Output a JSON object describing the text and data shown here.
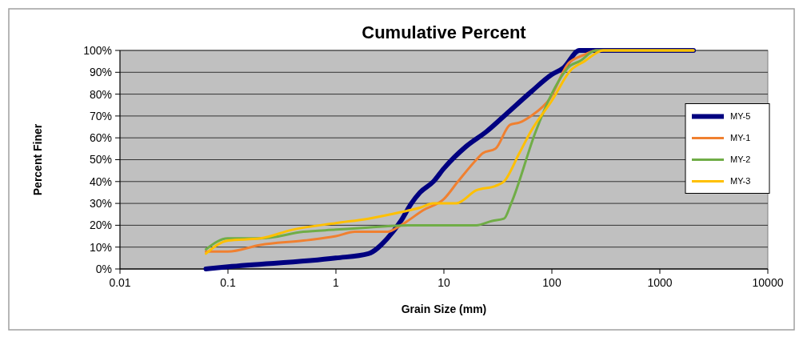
{
  "chart_data": {
    "type": "line",
    "title": "Cumulative Percent",
    "xlabel": "Grain Size (mm)",
    "ylabel": "Percent Finer",
    "log": "x",
    "grid": "y",
    "legend": "right",
    "marker": "none",
    "line_style": "solid",
    "xlim": [
      0.01,
      10000
    ],
    "xticks": [
      0.01,
      0.1,
      1,
      10,
      100,
      1000,
      10000
    ],
    "ylim": [
      0,
      100
    ],
    "yticks": [
      {
        "value": 0,
        "label": "0%"
      },
      {
        "value": 10,
        "label": "10%"
      },
      {
        "value": 20,
        "label": "20%"
      },
      {
        "value": 30,
        "label": "30%"
      },
      {
        "value": 40,
        "label": "40%"
      },
      {
        "value": 50,
        "label": "50%"
      },
      {
        "value": 60,
        "label": "60%"
      },
      {
        "value": 70,
        "label": "70%"
      },
      {
        "value": 80,
        "label": "80%"
      },
      {
        "value": 90,
        "label": "90%"
      },
      {
        "value": 100,
        "label": "100%"
      }
    ],
    "series": [
      {
        "name": "MY-5",
        "color": "#000080",
        "x": [
          0.0625,
          0.1,
          1,
          2,
          3,
          4,
          5,
          6,
          8,
          10,
          16,
          25,
          40,
          64,
          100,
          128,
          180,
          256,
          2048
        ],
        "values": [
          0,
          1,
          5,
          7,
          14,
          22,
          30,
          35,
          40,
          46,
          56,
          63,
          72,
          81,
          89,
          92,
          100,
          100,
          100
        ]
      },
      {
        "name": "MY-1",
        "color": "#f08030",
        "x": [
          0.0625,
          0.1,
          0.2,
          0.5,
          1,
          1.5,
          3,
          4,
          6.5,
          10,
          13.5,
          20,
          23,
          30,
          41,
          50,
          64,
          96,
          142,
          200,
          256,
          2048
        ],
        "values": [
          8,
          8,
          11,
          13,
          15,
          17,
          17,
          20,
          27,
          32,
          40,
          50,
          53,
          55,
          66,
          67,
          70,
          78,
          94,
          98,
          100,
          100
        ]
      },
      {
        "name": "MY-2",
        "color": "#70ad47",
        "x": [
          0.0625,
          0.1,
          0.2,
          0.5,
          1,
          2,
          5,
          10,
          20,
          28,
          36,
          42,
          71,
          95,
          148,
          180,
          256,
          2048
        ],
        "values": [
          9,
          14,
          14,
          17,
          18,
          19,
          20,
          20,
          20,
          22,
          23,
          30,
          63,
          78,
          93,
          95,
          100,
          100
        ]
      },
      {
        "name": "MY-3",
        "color": "#ffc000",
        "x": [
          0.0625,
          0.1,
          0.2,
          0.4,
          1,
          2,
          4,
          6,
          8,
          13,
          20,
          30,
          36,
          50,
          64,
          100,
          150,
          200,
          300,
          2048
        ],
        "values": [
          7,
          13,
          14,
          18,
          21,
          23,
          26,
          28,
          30,
          30,
          36,
          38,
          40,
          53,
          63,
          77,
          91,
          95,
          100,
          100
        ]
      }
    ]
  }
}
